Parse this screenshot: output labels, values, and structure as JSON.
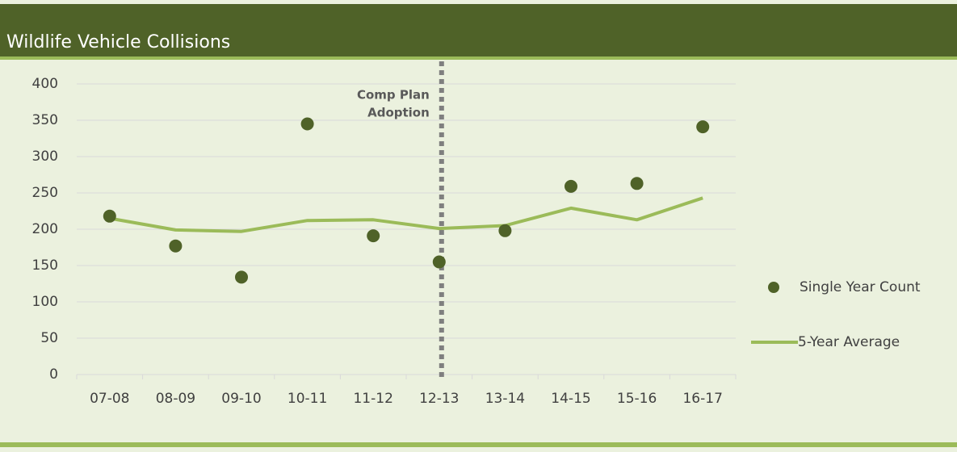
{
  "chart_data": {
    "type": "combo",
    "title": "Wildlife Vehicle Collisions",
    "categories": [
      "07-08",
      "08-09",
      "09-10",
      "10-11",
      "11-12",
      "12-13",
      "13-14",
      "14-15",
      "15-16",
      "16-17"
    ],
    "series": [
      {
        "name": "Single Year Count",
        "type": "scatter",
        "color": "#4f6228",
        "values": [
          218,
          177,
          134,
          345,
          191,
          155,
          198,
          259,
          263,
          341
        ]
      },
      {
        "name": "5-Year Average",
        "type": "line",
        "color": "#9bbb59",
        "values": [
          215,
          199,
          197,
          212,
          213,
          201,
          205,
          229,
          213,
          243
        ]
      }
    ],
    "ylim": [
      0,
      400
    ],
    "yticks": [
      0,
      50,
      100,
      150,
      200,
      250,
      300,
      350,
      400
    ],
    "grid": true,
    "annotation": {
      "lines": [
        "Comp Plan",
        "Adoption"
      ],
      "x": "12-13"
    },
    "legend": "right"
  }
}
